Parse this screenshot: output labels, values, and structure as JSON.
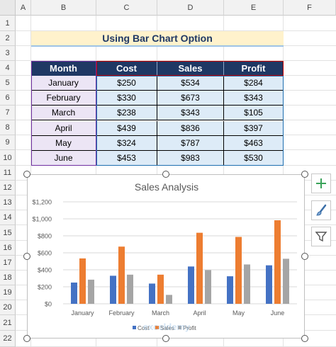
{
  "columns": [
    "A",
    "B",
    "C",
    "D",
    "E",
    "F"
  ],
  "rows": [
    "1",
    "2",
    "3",
    "4",
    "5",
    "6",
    "7",
    "8",
    "9",
    "10",
    "11",
    "12",
    "13",
    "14",
    "15",
    "16",
    "17",
    "18",
    "19",
    "20",
    "21",
    "22"
  ],
  "sheet_title": "Using Bar Chart Option",
  "table": {
    "headers": [
      "Month",
      "Cost",
      "Sales",
      "Profit"
    ],
    "rows": [
      [
        "January",
        "$250",
        "$534",
        "$284"
      ],
      [
        "February",
        "$330",
        "$673",
        "$343"
      ],
      [
        "March",
        "$238",
        "$343",
        "$105"
      ],
      [
        "April",
        "$439",
        "$836",
        "$397"
      ],
      [
        "May",
        "$324",
        "$787",
        "$463"
      ],
      [
        "June",
        "$453",
        "$983",
        "$530"
      ]
    ]
  },
  "chart_data": {
    "type": "bar",
    "title": "Sales Analysis",
    "categories": [
      "January",
      "February",
      "March",
      "April",
      "May",
      "June"
    ],
    "series": [
      {
        "name": "Cost",
        "values": [
          250,
          330,
          238,
          439,
          324,
          453
        ],
        "color": "#4472c4"
      },
      {
        "name": "Sales",
        "values": [
          534,
          673,
          343,
          836,
          787,
          983
        ],
        "color": "#ed7d31"
      },
      {
        "name": "Profit",
        "values": [
          284,
          343,
          105,
          397,
          463,
          530
        ],
        "color": "#a5a5a5"
      }
    ],
    "y_ticks": [
      "$0",
      "$200",
      "$400",
      "$600",
      "$800",
      "$1,000",
      "$1,200"
    ],
    "ylim": [
      0,
      1200
    ],
    "grid": true,
    "legend": "bottom"
  },
  "colors": {
    "header_fill": "#1f3864",
    "month_fill": "#ece5f5",
    "value_fill": "#ddebf7",
    "title_fill": "#fff2cc"
  },
  "side_buttons": [
    "chart-elements-plus-icon",
    "chart-styles-brush-icon",
    "chart-filters-funnel-icon"
  ],
  "watermark": "exceldemy"
}
